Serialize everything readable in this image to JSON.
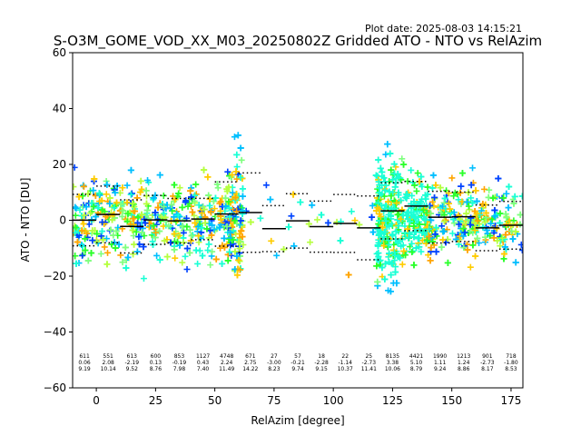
{
  "chart_data": {
    "type": "scatter",
    "title": "S-O3M_GOME_VOD_XX_M03_20250802Z Gridded ATO - NTO vs RelAzim",
    "plot_date": "Plot date: 2025-08-03 14:15:21",
    "xlabel": "RelAzim [degree]",
    "ylabel": "ATO - NTO [DU]",
    "xlim": [
      -10,
      180
    ],
    "ylim": [
      -60,
      60
    ],
    "x_ticks": [
      0,
      25,
      50,
      75,
      100,
      125,
      150,
      175
    ],
    "y_ticks": [
      -60,
      -40,
      -20,
      0,
      20,
      40,
      60
    ],
    "bin_width": 10,
    "bins": [
      {
        "x": -5,
        "count": "611",
        "mean": "0.06",
        "std": "9.19",
        "mean_val": 0.06,
        "std_val": 9.19
      },
      {
        "x": 5,
        "count": "551",
        "mean": "2.08",
        "std": "10.14",
        "mean_val": 2.08,
        "std_val": 10.14
      },
      {
        "x": 15,
        "count": "613",
        "mean": "-2.19",
        "std": "9.52",
        "mean_val": -2.19,
        "std_val": 9.52
      },
      {
        "x": 25,
        "count": "600",
        "mean": "0.13",
        "std": "8.76",
        "mean_val": 0.13,
        "std_val": 8.76
      },
      {
        "x": 35,
        "count": "853",
        "mean": "-0.19",
        "std": "7.98",
        "mean_val": -0.19,
        "std_val": 7.98
      },
      {
        "x": 45,
        "count": "1127",
        "mean": "0.43",
        "std": "7.40",
        "mean_val": 0.43,
        "std_val": 7.4
      },
      {
        "x": 55,
        "count": "4748",
        "mean": "2.24",
        "std": "11.49",
        "mean_val": 2.24,
        "std_val": 11.49
      },
      {
        "x": 65,
        "count": "671",
        "mean": "2.75",
        "std": "14.22",
        "mean_val": 2.75,
        "std_val": 14.22
      },
      {
        "x": 75,
        "count": "27",
        "mean": "-3.00",
        "std": "8.23",
        "mean_val": -3.0,
        "std_val": 8.23
      },
      {
        "x": 85,
        "count": "57",
        "mean": "-0.21",
        "std": "9.74",
        "mean_val": -0.21,
        "std_val": 9.74
      },
      {
        "x": 95,
        "count": "18",
        "mean": "-2.28",
        "std": "9.15",
        "mean_val": -2.28,
        "std_val": 9.15
      },
      {
        "x": 105,
        "count": "22",
        "mean": "-1.14",
        "std": "10.37",
        "mean_val": -1.14,
        "std_val": 10.37
      },
      {
        "x": 115,
        "count": "25",
        "mean": "-2.73",
        "std": "11.41",
        "mean_val": -2.73,
        "std_val": 11.41
      },
      {
        "x": 125,
        "count": "8135",
        "mean": "3.38",
        "std": "10.06",
        "mean_val": 3.38,
        "std_val": 10.06
      },
      {
        "x": 135,
        "count": "4421",
        "mean": "5.10",
        "std": "8.79",
        "mean_val": 5.1,
        "std_val": 8.79
      },
      {
        "x": 145,
        "count": "1990",
        "mean": "1.11",
        "std": "9.24",
        "mean_val": 1.11,
        "std_val": 9.24
      },
      {
        "x": 155,
        "count": "1213",
        "mean": "1.24",
        "std": "8.86",
        "mean_val": 1.24,
        "std_val": 8.86
      },
      {
        "x": 165,
        "count": "901",
        "mean": "-2.73",
        "std": "8.17",
        "mean_val": -2.73,
        "std_val": 8.17
      },
      {
        "x": 175,
        "count": "718",
        "mean": "-1.80",
        "std": "8.53",
        "mean_val": -1.8,
        "std_val": 8.53
      }
    ],
    "marker": "+",
    "point_colors": [
      "#00bfff",
      "#2aff2a",
      "#7fff7f",
      "#b5ff3f",
      "#ffcc00",
      "#ffa500",
      "#0044ff",
      "#1affd5"
    ],
    "point_density": "dense clouds of + markers: heavy near 55-62 and 118-140 degrees, sparse between 70 and 118 degrees"
  }
}
